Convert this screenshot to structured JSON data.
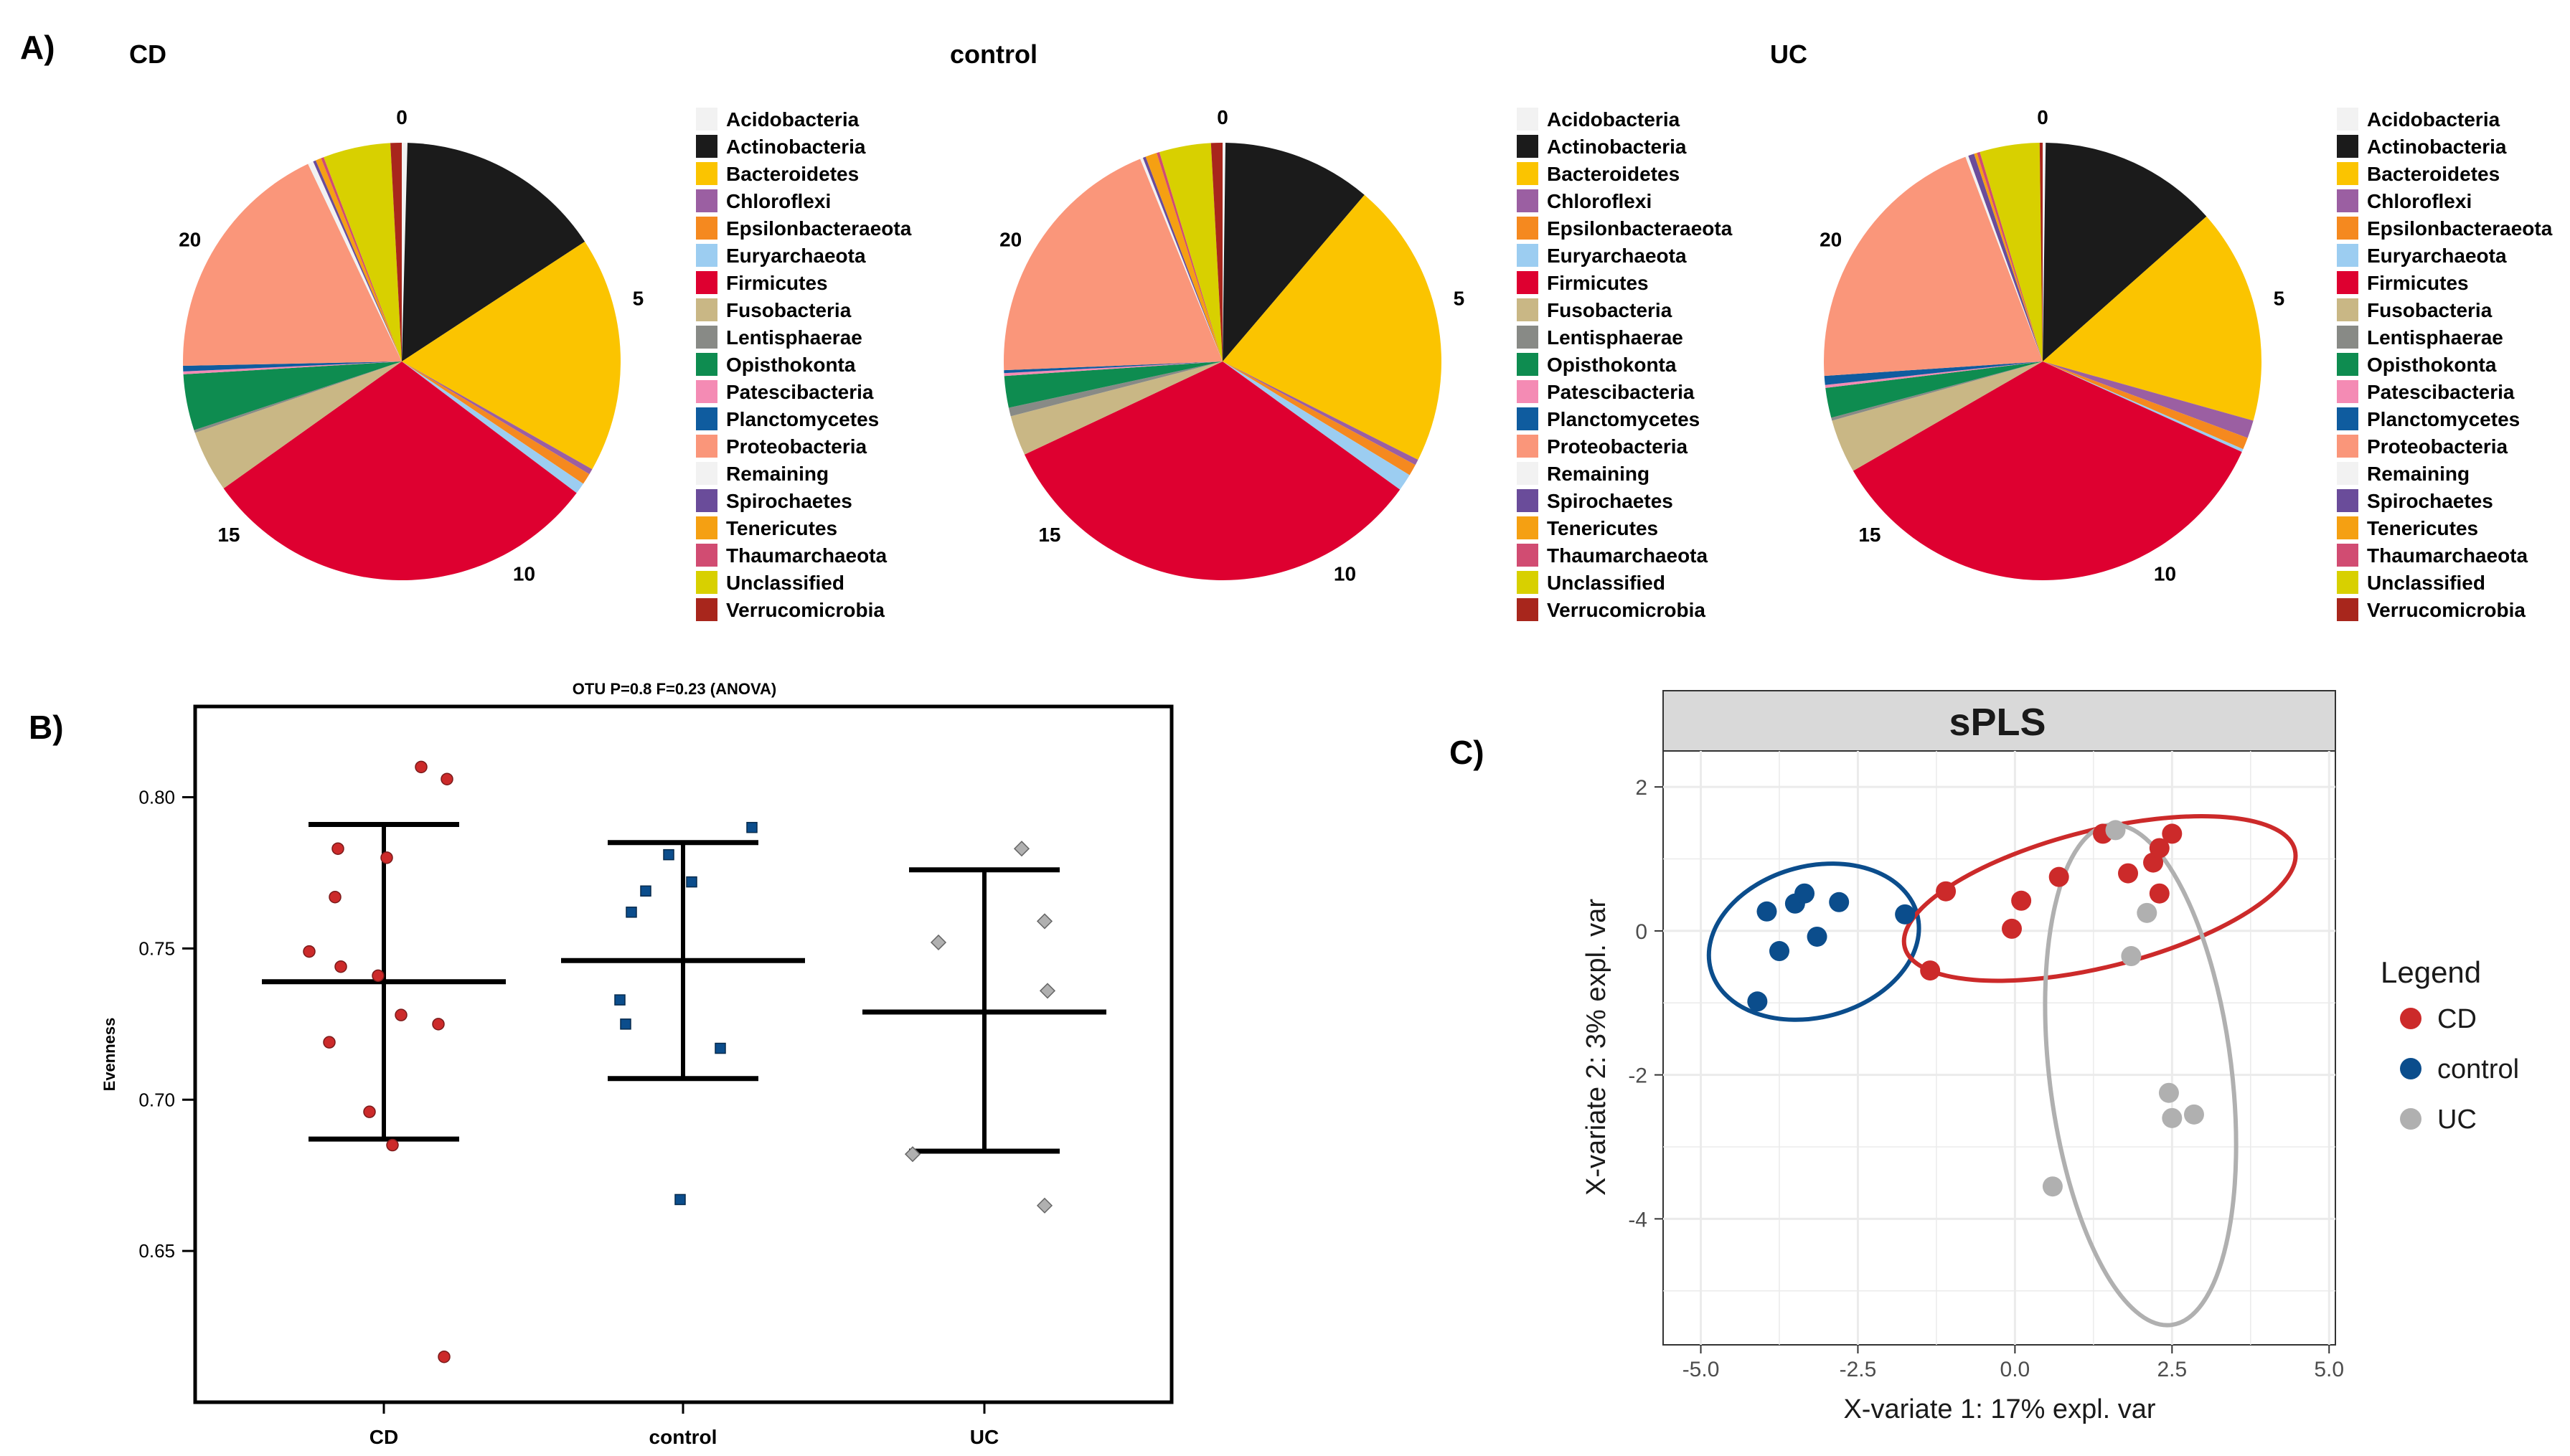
{
  "panels": {
    "a_label": "A)",
    "b_label": "B)",
    "c_label": "C)"
  },
  "colors": {
    "Acidobacteria": "#f2f2f2",
    "Actinobacteria": "#1b1b1b",
    "Bacteroidetes": "#fbc400",
    "Chloroflexi": "#9b5fa2",
    "Epsilonbacteraeota": "#f5891f",
    "Euryarchaeota": "#9ccdf1",
    "Firmicutes": "#de0030",
    "Fusobacteria": "#c9b785",
    "Lentisphaerae": "#888a86",
    "Opisthokonta": "#0e8c50",
    "Patescibacteria": "#f48bb4",
    "Planctomycetes": "#0f5c9f",
    "Proteobacteria": "#fa967a",
    "Remaining": "#f2f2f2",
    "Spirochaetes": "#6a4c9a",
    "Tenericutes": "#f5a012",
    "Thaumarchaeota": "#d14c72",
    "Unclassified": "#d8d000",
    "Verrucomicrobia": "#a8261c",
    "CD": "#cc2a2a",
    "control": "#0b4d8c",
    "UC": "#b0b0b0"
  },
  "chart_data": [
    {
      "type": "pie",
      "title": "CD",
      "clock_labels": [
        "0",
        "5",
        "10",
        "15",
        "20"
      ],
      "slices": [
        {
          "name": "Acidobacteria",
          "value": 0.1
        },
        {
          "name": "Actinobacteria",
          "value": 3.7
        },
        {
          "name": "Bacteroidetes",
          "value": 4.2
        },
        {
          "name": "Chloroflexi",
          "value": 0.1
        },
        {
          "name": "Epsilonbacteraeota",
          "value": 0.2
        },
        {
          "name": "Euryarchaeota",
          "value": 0.2
        },
        {
          "name": "Firmicutes",
          "value": 7.2
        },
        {
          "name": "Fusobacteria",
          "value": 1.1
        },
        {
          "name": "Lentisphaerae",
          "value": 0.05
        },
        {
          "name": "Opisthokonta",
          "value": 1.0
        },
        {
          "name": "Patescibacteria",
          "value": 0.05
        },
        {
          "name": "Planctomycetes",
          "value": 0.1
        },
        {
          "name": "Proteobacteria",
          "value": 4.4
        },
        {
          "name": "Remaining",
          "value": 0.1
        },
        {
          "name": "Spirochaetes",
          "value": 0.05
        },
        {
          "name": "Tenericutes",
          "value": 0.1
        },
        {
          "name": "Thaumarchaeota",
          "value": 0.05
        },
        {
          "name": "Unclassified",
          "value": 1.2
        },
        {
          "name": "Verrucomicrobia",
          "value": 0.2
        }
      ]
    },
    {
      "type": "pie",
      "title": "control",
      "clock_labels": [
        "0",
        "5",
        "10",
        "15",
        "20"
      ],
      "slices": [
        {
          "name": "Acidobacteria",
          "value": 0.05
        },
        {
          "name": "Actinobacteria",
          "value": 2.6
        },
        {
          "name": "Bacteroidetes",
          "value": 5.0
        },
        {
          "name": "Chloroflexi",
          "value": 0.1
        },
        {
          "name": "Epsilonbacteraeota",
          "value": 0.2
        },
        {
          "name": "Euryarchaeota",
          "value": 0.3
        },
        {
          "name": "Firmicutes",
          "value": 7.8
        },
        {
          "name": "Fusobacteria",
          "value": 0.7
        },
        {
          "name": "Lentisphaerae",
          "value": 0.15
        },
        {
          "name": "Opisthokonta",
          "value": 0.55
        },
        {
          "name": "Patescibacteria",
          "value": 0.05
        },
        {
          "name": "Planctomycetes",
          "value": 0.05
        },
        {
          "name": "Proteobacteria",
          "value": 4.6
        },
        {
          "name": "Remaining",
          "value": 0.05
        },
        {
          "name": "Spirochaetes",
          "value": 0.05
        },
        {
          "name": "Tenericutes",
          "value": 0.2
        },
        {
          "name": "Thaumarchaeota",
          "value": 0.05
        },
        {
          "name": "Unclassified",
          "value": 0.9
        },
        {
          "name": "Verrucomicrobia",
          "value": 0.2
        }
      ]
    },
    {
      "type": "pie",
      "title": "UC",
      "clock_labels": [
        "0",
        "5",
        "10",
        "15",
        "20"
      ],
      "slices": [
        {
          "name": "Acidobacteria",
          "value": 0.05
        },
        {
          "name": "Actinobacteria",
          "value": 3.0
        },
        {
          "name": "Bacteroidetes",
          "value": 3.6
        },
        {
          "name": "Chloroflexi",
          "value": 0.3
        },
        {
          "name": "Epsilonbacteraeota",
          "value": 0.2
        },
        {
          "name": "Euryarchaeota",
          "value": 0.05
        },
        {
          "name": "Firmicutes",
          "value": 7.9
        },
        {
          "name": "Fusobacteria",
          "value": 0.9
        },
        {
          "name": "Lentisphaerae",
          "value": 0.05
        },
        {
          "name": "Opisthokonta",
          "value": 0.5
        },
        {
          "name": "Patescibacteria",
          "value": 0.05
        },
        {
          "name": "Planctomycetes",
          "value": 0.15
        },
        {
          "name": "Proteobacteria",
          "value": 4.6
        },
        {
          "name": "Remaining",
          "value": 0.05
        },
        {
          "name": "Spirochaetes",
          "value": 0.1
        },
        {
          "name": "Tenericutes",
          "value": 0.05
        },
        {
          "name": "Thaumarchaeota",
          "value": 0.05
        },
        {
          "name": "Unclassified",
          "value": 1.0
        },
        {
          "name": "Verrucomicrobia",
          "value": 0.05
        }
      ]
    },
    {
      "type": "scatter",
      "title": "OTU P=0.8 F=0.23 (ANOVA)",
      "ylabel": "Evenness",
      "categories": [
        "CD",
        "control",
        "UC"
      ],
      "yticks": [
        0.65,
        0.7,
        0.75,
        0.8
      ],
      "ylim": [
        0.6,
        0.83
      ],
      "summary": [
        {
          "group": "CD",
          "mean": 0.739,
          "upper": 0.791,
          "lower": 0.687
        },
        {
          "group": "control",
          "mean": 0.746,
          "upper": 0.785,
          "lower": 0.707
        },
        {
          "group": "UC",
          "mean": 0.729,
          "upper": 0.776,
          "lower": 0.683
        }
      ],
      "points": [
        {
          "group": "CD",
          "xoff": 0.13,
          "y": 0.81
        },
        {
          "group": "CD",
          "xoff": 0.22,
          "y": 0.806
        },
        {
          "group": "CD",
          "xoff": -0.16,
          "y": 0.783
        },
        {
          "group": "CD",
          "xoff": 0.01,
          "y": 0.78
        },
        {
          "group": "CD",
          "xoff": -0.17,
          "y": 0.767
        },
        {
          "group": "CD",
          "xoff": -0.26,
          "y": 0.749
        },
        {
          "group": "CD",
          "xoff": -0.15,
          "y": 0.744
        },
        {
          "group": "CD",
          "xoff": -0.02,
          "y": 0.741
        },
        {
          "group": "CD",
          "xoff": 0.06,
          "y": 0.728
        },
        {
          "group": "CD",
          "xoff": 0.19,
          "y": 0.725
        },
        {
          "group": "CD",
          "xoff": -0.19,
          "y": 0.719
        },
        {
          "group": "CD",
          "xoff": -0.05,
          "y": 0.696
        },
        {
          "group": "CD",
          "xoff": 0.03,
          "y": 0.685
        },
        {
          "group": "CD",
          "xoff": 0.21,
          "y": 0.615
        },
        {
          "group": "control",
          "xoff": 0.24,
          "y": 0.79
        },
        {
          "group": "control",
          "xoff": -0.05,
          "y": 0.781
        },
        {
          "group": "control",
          "xoff": 0.03,
          "y": 0.772
        },
        {
          "group": "control",
          "xoff": -0.13,
          "y": 0.769
        },
        {
          "group": "control",
          "xoff": -0.18,
          "y": 0.762
        },
        {
          "group": "control",
          "xoff": -0.22,
          "y": 0.733
        },
        {
          "group": "control",
          "xoff": -0.2,
          "y": 0.725
        },
        {
          "group": "control",
          "xoff": 0.13,
          "y": 0.717
        },
        {
          "group": "control",
          "xoff": -0.01,
          "y": 0.667
        },
        {
          "group": "UC",
          "xoff": 0.13,
          "y": 0.783
        },
        {
          "group": "UC",
          "xoff": 0.21,
          "y": 0.759
        },
        {
          "group": "UC",
          "xoff": -0.16,
          "y": 0.752
        },
        {
          "group": "UC",
          "xoff": 0.22,
          "y": 0.736
        },
        {
          "group": "UC",
          "xoff": -0.25,
          "y": 0.682
        },
        {
          "group": "UC",
          "xoff": 0.21,
          "y": 0.665
        }
      ]
    },
    {
      "type": "scatter",
      "title": "sPLS",
      "xlabel": "X-variate 1: 17% expl. var",
      "ylabel": "X-variate 2: 3% expl. var",
      "xlim": [
        -5.6,
        5.1
      ],
      "ylim": [
        -5.75,
        2.5
      ],
      "xticks": [
        -5.0,
        -2.5,
        0.0,
        2.5,
        5.0
      ],
      "xtick_labels": [
        "-5.0",
        "-2.5",
        "0.0",
        "2.5",
        "5.0"
      ],
      "yticks": [
        2,
        0,
        -2,
        -4
      ],
      "grid": true,
      "legend": {
        "title": "Legend",
        "position": "right",
        "entries": [
          "CD",
          "control",
          "UC"
        ]
      },
      "ellipses": [
        {
          "group": "control",
          "cx": -3.2,
          "cy": -0.15,
          "rx": 1.7,
          "ry": 1.05,
          "angle": 15
        },
        {
          "group": "CD",
          "cx": 1.35,
          "cy": 0.45,
          "rx": 3.2,
          "ry": 0.95,
          "angle": 14
        },
        {
          "group": "UC",
          "cx": 2.0,
          "cy": -2.0,
          "rx": 1.45,
          "ry": 3.5,
          "angle": 7
        }
      ],
      "points": [
        {
          "group": "control",
          "x": -4.1,
          "y": -0.98
        },
        {
          "group": "control",
          "x": -3.75,
          "y": -0.28
        },
        {
          "group": "control",
          "x": -3.5,
          "y": 0.38
        },
        {
          "group": "control",
          "x": -3.35,
          "y": 0.52
        },
        {
          "group": "control",
          "x": -3.95,
          "y": 0.27
        },
        {
          "group": "control",
          "x": -3.15,
          "y": -0.08
        },
        {
          "group": "control",
          "x": -2.8,
          "y": 0.4
        },
        {
          "group": "control",
          "x": -1.75,
          "y": 0.23
        },
        {
          "group": "CD",
          "x": -1.35,
          "y": -0.55
        },
        {
          "group": "CD",
          "x": -1.1,
          "y": 0.55
        },
        {
          "group": "CD",
          "x": -0.05,
          "y": 0.03
        },
        {
          "group": "CD",
          "x": 0.1,
          "y": 0.42
        },
        {
          "group": "CD",
          "x": 0.7,
          "y": 0.75
        },
        {
          "group": "CD",
          "x": 1.4,
          "y": 1.35
        },
        {
          "group": "CD",
          "x": 1.8,
          "y": 0.8
        },
        {
          "group": "CD",
          "x": 2.2,
          "y": 0.95
        },
        {
          "group": "CD",
          "x": 2.3,
          "y": 1.15
        },
        {
          "group": "CD",
          "x": 2.5,
          "y": 1.35
        },
        {
          "group": "CD",
          "x": 2.3,
          "y": 0.52
        },
        {
          "group": "UC",
          "x": 1.6,
          "y": 1.4
        },
        {
          "group": "UC",
          "x": 2.1,
          "y": 0.25
        },
        {
          "group": "UC",
          "x": 1.85,
          "y": -0.35
        },
        {
          "group": "UC",
          "x": 2.45,
          "y": -2.25
        },
        {
          "group": "UC",
          "x": 2.5,
          "y": -2.6
        },
        {
          "group": "UC",
          "x": 2.85,
          "y": -2.55
        },
        {
          "group": "UC",
          "x": 0.6,
          "y": -3.55
        }
      ]
    }
  ]
}
